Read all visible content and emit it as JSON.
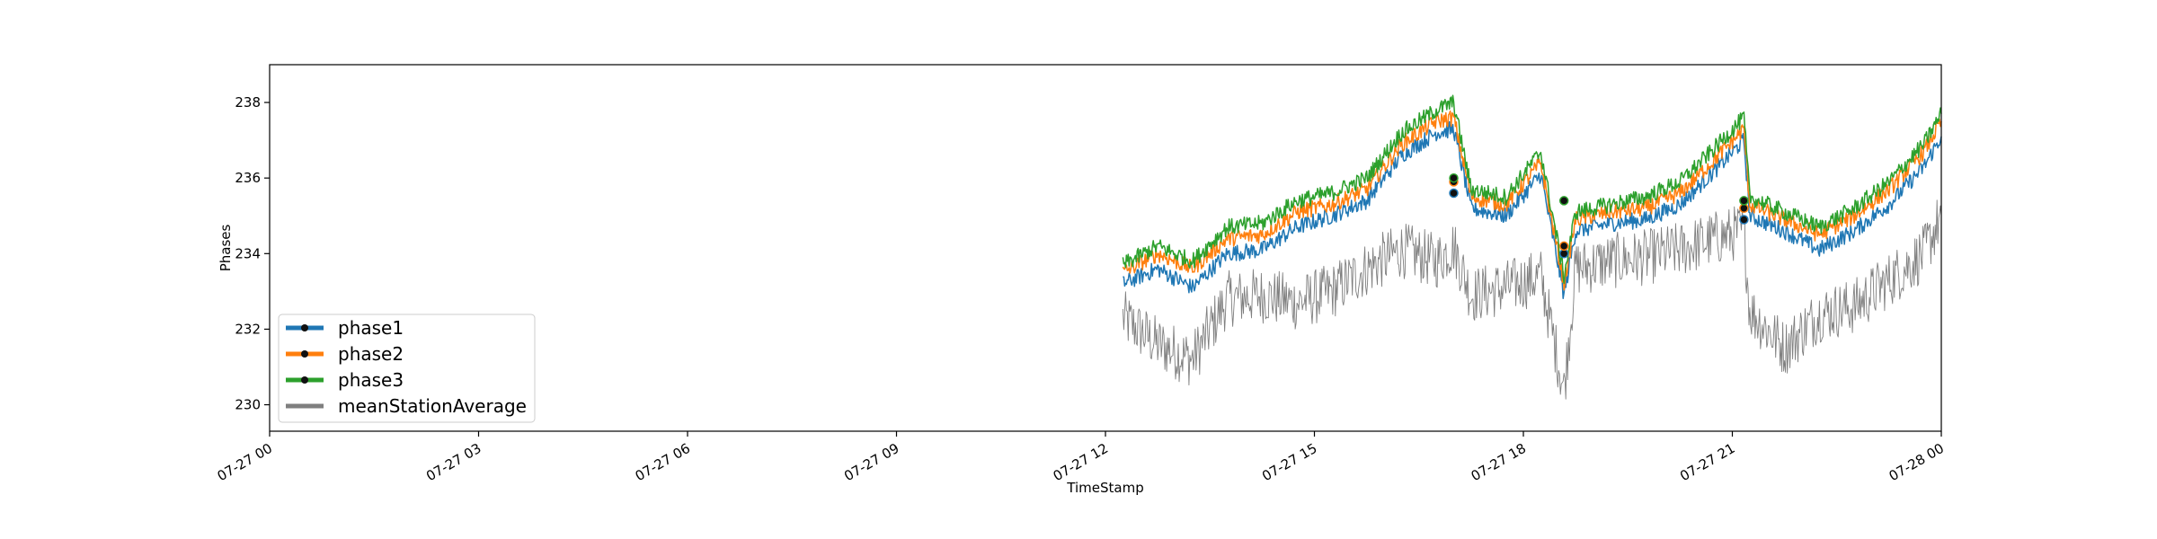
{
  "chart_data": {
    "type": "line",
    "title": "",
    "xlabel": "TimeStamp",
    "ylabel": "Phases",
    "x_tick_labels": [
      "07-27 00",
      "07-27 03",
      "07-27 06",
      "07-27 09",
      "07-27 12",
      "07-27 15",
      "07-27 18",
      "07-27 21",
      "07-28 00"
    ],
    "y_tick_labels": [
      "230",
      "232",
      "234",
      "236",
      "238"
    ],
    "xlim": [
      "07-27 00:00",
      "07-28 00:00"
    ],
    "ylim": [
      229.3,
      239.0
    ],
    "grid": false,
    "legend_position": "lower-left",
    "x": [
      "12:15",
      "12:45",
      "13:15",
      "13:45",
      "14:15",
      "14:45",
      "15:15",
      "15:45",
      "16:15",
      "16:45",
      "17:00",
      "17:15",
      "17:45",
      "18:15",
      "18:35",
      "18:45",
      "19:15",
      "19:45",
      "20:15",
      "20:45",
      "21:10",
      "21:15",
      "21:45",
      "22:15",
      "22:45",
      "23:15",
      "23:45",
      "24:00"
    ],
    "series": [
      {
        "name": "phase1",
        "color": "#1f77b4",
        "values": [
          233.2,
          233.6,
          233.1,
          234.0,
          234.1,
          234.7,
          235.0,
          235.4,
          236.6,
          237.2,
          237.3,
          235.2,
          235.0,
          236.1,
          232.9,
          234.6,
          234.8,
          234.9,
          235.3,
          236.2,
          237.0,
          235.0,
          234.6,
          234.1,
          234.6,
          235.3,
          236.3,
          237.1
        ]
      },
      {
        "name": "phase2",
        "color": "#ff7f0e",
        "values": [
          233.5,
          234.0,
          233.6,
          234.4,
          234.5,
          235.1,
          235.3,
          235.7,
          236.9,
          237.5,
          237.6,
          235.5,
          235.3,
          236.4,
          233.2,
          234.9,
          235.1,
          235.2,
          235.6,
          236.5,
          237.3,
          235.3,
          234.9,
          234.5,
          235.0,
          235.7,
          236.7,
          237.5
        ]
      },
      {
        "name": "phase3",
        "color": "#2ca02c",
        "values": [
          233.7,
          234.2,
          233.8,
          234.7,
          234.8,
          235.4,
          235.6,
          236.0,
          237.2,
          237.8,
          238.0,
          235.7,
          235.5,
          236.7,
          233.4,
          235.1,
          235.3,
          235.5,
          235.9,
          236.8,
          237.6,
          235.5,
          235.1,
          234.7,
          235.2,
          235.9,
          236.9,
          237.7
        ]
      },
      {
        "name": "meanStationAverage",
        "color": "#7f7f7f",
        "values": [
          232.3,
          231.6,
          231.2,
          232.8,
          232.9,
          232.7,
          233.0,
          233.6,
          234.1,
          233.8,
          234.2,
          232.9,
          233.1,
          233.4,
          230.4,
          233.6,
          233.8,
          233.9,
          234.1,
          234.4,
          234.6,
          232.5,
          231.5,
          232.4,
          232.6,
          233.3,
          234.0,
          235.0
        ]
      }
    ],
    "markers": [
      {
        "x": "17:00",
        "values": [
          235.6,
          235.9,
          236.0
        ]
      },
      {
        "x": "18:35",
        "values": [
          234.0,
          234.2,
          235.4
        ]
      },
      {
        "x": "21:10",
        "values": [
          234.9,
          235.2,
          235.4
        ]
      }
    ]
  }
}
